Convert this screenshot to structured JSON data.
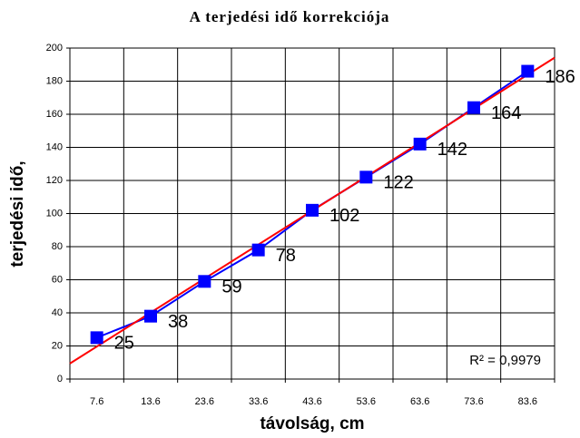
{
  "chart_data": {
    "type": "line",
    "title": "A terjedési idő korrekciója",
    "x_label": "távolság, cm",
    "y_label": "terjedési idő,",
    "categories": [
      "7.6",
      "13.6",
      "23.6",
      "33.6",
      "43.6",
      "53.6",
      "63.6",
      "73.6",
      "83.6"
    ],
    "series": [
      {
        "name": "terjedési idő",
        "color": "#0000ff",
        "values": [
          25,
          38,
          59,
          78,
          102,
          122,
          142,
          164,
          186
        ]
      }
    ],
    "trendline": {
      "type": "linear",
      "color": "#ff0000"
    },
    "annotation": "R² = 0,9979",
    "ylim": [
      0,
      200
    ],
    "yticks": [
      0,
      20,
      40,
      60,
      80,
      100,
      120,
      140,
      160,
      180,
      200
    ],
    "grid": true,
    "data_labels": true
  }
}
